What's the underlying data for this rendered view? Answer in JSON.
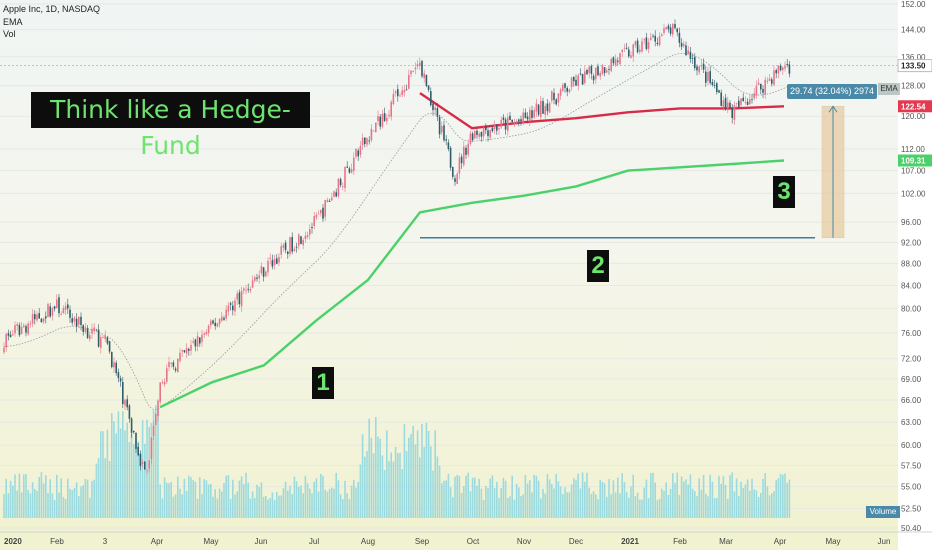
{
  "header": {
    "symbol_line": "Apple Inc, 1D, NASDAQ",
    "indicator_ema": "EMA",
    "indicator_vol": "Vol"
  },
  "banner": {
    "text": "Think like a Hedge-Fund"
  },
  "markers": [
    "1",
    "2",
    "3"
  ],
  "measure": {
    "label": "29.74 (32.04%) 2974",
    "from": 92.9,
    "to": 122.54
  },
  "axis_badges": {
    "ema": "EMA",
    "volume": "Volume"
  },
  "chart_data": {
    "type": "candlestick",
    "title": "Apple Inc, 1D, NASDAQ",
    "y_scale": "log",
    "ylim": [
      50.4,
      152.0
    ],
    "y_ticks": [
      "152.00",
      "144.00",
      "136.00",
      "128.00",
      "120.00",
      "112.00",
      "107.00",
      "102.00",
      "96.00",
      "92.00",
      "88.00",
      "84.00",
      "80.00",
      "76.00",
      "72.00",
      "69.00",
      "66.00",
      "63.00",
      "60.00",
      "57.50",
      "55.00",
      "52.50",
      "50.40"
    ],
    "x_ticks": [
      "2020",
      "Feb",
      "3",
      "Apr",
      "May",
      "Jun",
      "Jul",
      "Aug",
      "Sep",
      "Oct",
      "Nov",
      "Dec",
      "2021",
      "Feb",
      "Mar",
      "Apr",
      "May",
      "Jun"
    ],
    "last_price": 133.5,
    "series": [
      {
        "name": "Price",
        "x": [
          "2020-01",
          "2020-02",
          "2020-03",
          "2020-03-23",
          "2020-04",
          "2020-05",
          "2020-06",
          "2020-07",
          "2020-08",
          "2020-09-01",
          "2020-09-21",
          "2020-10",
          "2020-11",
          "2020-12",
          "2021-01-26",
          "2021-03",
          "2021-04"
        ],
        "values": [
          75.0,
          80.5,
          74.0,
          56.0,
          69.0,
          77.0,
          87.0,
          96.0,
          115.0,
          134.0,
          106.0,
          116.0,
          119.0,
          129.0,
          144.0,
          121.0,
          133.5
        ]
      },
      {
        "name": "EMA",
        "x": [
          "2020-01",
          "2020-04",
          "2020-05",
          "2020-06",
          "2020-07",
          "2020-08",
          "2020-09",
          "2020-10",
          "2020-11",
          "2020-12",
          "2021-01",
          "2021-03",
          "2021-04"
        ],
        "values": [
          0,
          65.0,
          68.5,
          71.0,
          78.0,
          85.0,
          98.0,
          100.0,
          101.5,
          103.5,
          107.0,
          108.5,
          109.31
        ]
      },
      {
        "name": "EMA",
        "x": [
          "2020-09",
          "2020-10",
          "2020-11",
          "2020-12",
          "2021-01",
          "2021-02",
          "2021-03",
          "2021-04"
        ],
        "values": [
          126.0,
          117.0,
          118.5,
          119.5,
          121.0,
          122.0,
          122.0,
          122.54
        ]
      }
    ],
    "horizontal_line": 92.9,
    "price_badges": [
      {
        "label": "133.50",
        "value": 133.5,
        "color": "#ffffff"
      },
      {
        "label": "122.54",
        "value": 122.54,
        "color": "#e53950"
      },
      {
        "label": "109.31",
        "value": 109.31,
        "color": "#4bd16a"
      }
    ],
    "colors": {
      "up": "#e8748a",
      "down": "#2f5d6a",
      "ema_green": "#4bd16a",
      "ema_red": "#d92a48",
      "volume": "#7fd1e0",
      "level_line": "#3a7ea0",
      "measure": "#e8c9a0"
    }
  }
}
